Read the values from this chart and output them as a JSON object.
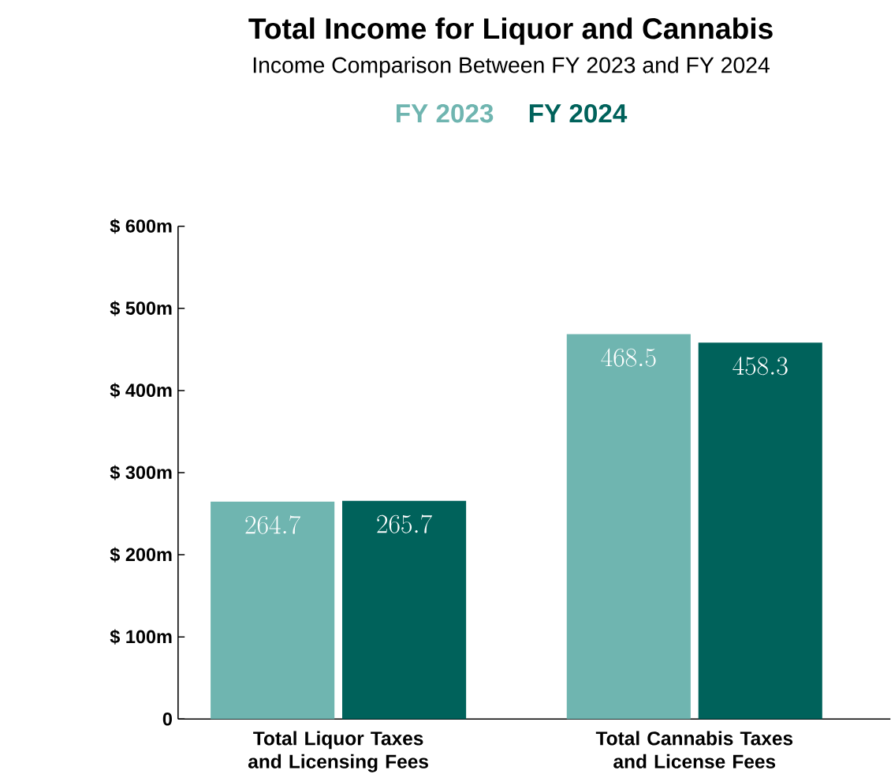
{
  "chart_data": {
    "type": "bar",
    "title": "Total Income for Liquor and Cannabis",
    "subtitle": "Income Comparison Between FY 2023 and FY 2024",
    "categories": [
      "Total Liquor Taxes and Licensing Fees",
      "Total Cannabis Taxes and License Fees"
    ],
    "series": [
      {
        "name": "FY 2023",
        "color": "#6fb5b0",
        "values": [
          264.7,
          468.5
        ]
      },
      {
        "name": "FY 2024",
        "color": "#00625b",
        "values": [
          265.7,
          458.3
        ]
      }
    ],
    "ylim": [
      0,
      600
    ],
    "yticks": [
      {
        "value": 0,
        "label": "0"
      },
      {
        "value": 100,
        "label": "$ 100m"
      },
      {
        "value": 200,
        "label": "$ 200m"
      },
      {
        "value": 300,
        "label": "$ 300m"
      },
      {
        "value": 400,
        "label": "$ 400m"
      },
      {
        "value": 500,
        "label": "$ 500m"
      },
      {
        "value": 600,
        "label": "$ 600m"
      }
    ],
    "data_labels": true,
    "legend": "top",
    "grid": false
  }
}
